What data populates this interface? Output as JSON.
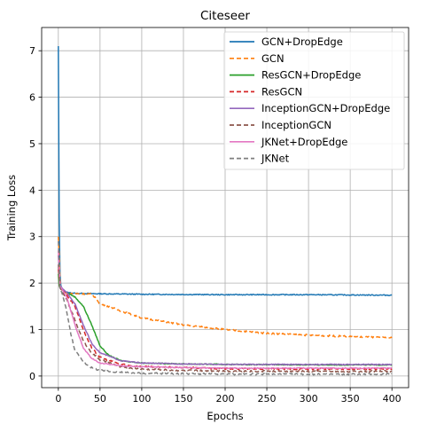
{
  "chart_data": {
    "type": "line",
    "title": "Citeseer",
    "xlabel": "Epochs",
    "ylabel": "Training Loss",
    "xlim": [
      -20,
      420
    ],
    "ylim": [
      -0.25,
      7.5
    ],
    "xticks": [
      0,
      50,
      100,
      150,
      200,
      250,
      300,
      350,
      400
    ],
    "yticks": [
      0,
      1,
      2,
      3,
      4,
      5,
      6,
      7
    ],
    "grid": true,
    "legend_position": "top-right",
    "series": [
      {
        "name": "GCN+DropEdge",
        "color": "#1f77b4",
        "dash": "solid",
        "x": [
          0,
          1,
          2,
          3,
          5,
          10,
          20,
          50,
          100,
          200,
          300,
          400
        ],
        "y": [
          7.1,
          3.4,
          2.2,
          1.95,
          1.85,
          1.8,
          1.78,
          1.77,
          1.76,
          1.75,
          1.75,
          1.74
        ]
      },
      {
        "name": "GCN",
        "color": "#ff7f0e",
        "dash": "dashed",
        "x": [
          0,
          1,
          2,
          3,
          5,
          10,
          20,
          30,
          40,
          45,
          50,
          60,
          75,
          100,
          150,
          200,
          250,
          300,
          350,
          400
        ],
        "y": [
          3.0,
          2.6,
          2.1,
          1.9,
          1.82,
          1.78,
          1.77,
          1.77,
          1.76,
          1.68,
          1.55,
          1.5,
          1.4,
          1.25,
          1.1,
          1.0,
          0.92,
          0.88,
          0.85,
          0.82
        ]
      },
      {
        "name": "ResGCN+DropEdge",
        "color": "#2ca02c",
        "dash": "solid",
        "x": [
          0,
          1,
          2,
          5,
          10,
          20,
          30,
          40,
          50,
          60,
          75,
          100,
          150,
          200,
          300,
          400
        ],
        "y": [
          2.2,
          1.95,
          1.9,
          1.85,
          1.8,
          1.7,
          1.5,
          1.1,
          0.65,
          0.45,
          0.33,
          0.28,
          0.26,
          0.25,
          0.24,
          0.24
        ]
      },
      {
        "name": "ResGCN",
        "color": "#d62728",
        "dash": "dashed",
        "x": [
          0,
          2,
          5,
          10,
          20,
          30,
          40,
          50,
          75,
          100,
          150,
          200,
          300,
          400
        ],
        "y": [
          2.3,
          1.9,
          1.85,
          1.75,
          1.5,
          1.0,
          0.6,
          0.4,
          0.25,
          0.2,
          0.18,
          0.16,
          0.15,
          0.15
        ]
      },
      {
        "name": "InceptionGCN+DropEdge",
        "color": "#9467bd",
        "dash": "solid",
        "x": [
          0,
          2,
          5,
          10,
          20,
          30,
          40,
          50,
          75,
          100,
          150,
          200,
          300,
          400
        ],
        "y": [
          2.6,
          1.95,
          1.88,
          1.8,
          1.55,
          1.1,
          0.7,
          0.5,
          0.33,
          0.28,
          0.26,
          0.25,
          0.25,
          0.25
        ]
      },
      {
        "name": "InceptionGCN",
        "color": "#8c564b",
        "dash": "dashed",
        "x": [
          0,
          2,
          5,
          10,
          20,
          30,
          40,
          50,
          75,
          100,
          150,
          200,
          300,
          400
        ],
        "y": [
          2.4,
          1.9,
          1.8,
          1.65,
          1.2,
          0.75,
          0.5,
          0.35,
          0.2,
          0.15,
          0.12,
          0.11,
          0.1,
          0.1
        ]
      },
      {
        "name": "JKNet+DropEdge",
        "color": "#e377c2",
        "dash": "solid",
        "x": [
          0,
          2,
          5,
          10,
          20,
          30,
          40,
          50,
          75,
          100,
          150,
          200,
          300,
          400
        ],
        "y": [
          2.7,
          1.95,
          1.85,
          1.7,
          1.1,
          0.6,
          0.38,
          0.28,
          0.22,
          0.2,
          0.18,
          0.17,
          0.17,
          0.17
        ]
      },
      {
        "name": "JKNet",
        "color": "#7f7f7f",
        "dash": "dashed",
        "x": [
          0,
          2,
          5,
          10,
          15,
          20,
          30,
          40,
          50,
          75,
          100,
          150,
          200,
          300,
          400
        ],
        "y": [
          2.9,
          1.9,
          1.75,
          1.4,
          0.9,
          0.55,
          0.3,
          0.18,
          0.12,
          0.08,
          0.06,
          0.05,
          0.04,
          0.04,
          0.04
        ]
      }
    ]
  }
}
